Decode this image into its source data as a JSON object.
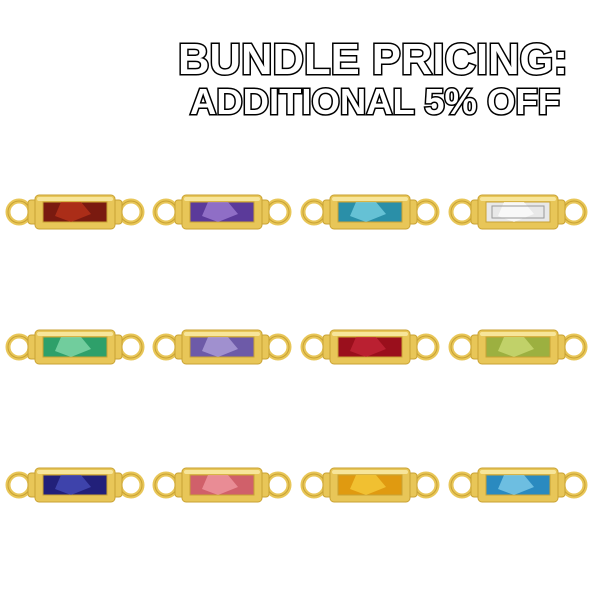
{
  "promo": {
    "line1": "BUNDLE PRICING:",
    "line2": "ADDITIONAL 5% OFF"
  },
  "colors": {
    "gold": "#e8c658",
    "gold_dark": "#c9a233",
    "gold_light": "#f7e59a"
  },
  "charms": [
    {
      "stone": "garnet",
      "color": "#7a1a10",
      "highlight": "#c0361c"
    },
    {
      "stone": "amethyst",
      "color": "#5b3a9a",
      "highlight": "#a585d8"
    },
    {
      "stone": "aquamarine",
      "color": "#2a8fa8",
      "highlight": "#7fd6e8"
    },
    {
      "stone": "diamond",
      "color": "#e8e8e8",
      "highlight": "#ffffff"
    },
    {
      "stone": "emerald",
      "color": "#2ea06a",
      "highlight": "#8fe0b4"
    },
    {
      "stone": "alexandrite",
      "color": "#6d5aa8",
      "highlight": "#b7a6e0"
    },
    {
      "stone": "ruby",
      "color": "#9a0f1c",
      "highlight": "#c8283a"
    },
    {
      "stone": "peridot",
      "color": "#9cb040",
      "highlight": "#d2e07a"
    },
    {
      "stone": "sapphire",
      "color": "#22207a",
      "highlight": "#4a52c0"
    },
    {
      "stone": "pink-tourmaline",
      "color": "#d0606a",
      "highlight": "#f4a0a8"
    },
    {
      "stone": "citrine",
      "color": "#e09a10",
      "highlight": "#f8d040"
    },
    {
      "stone": "blue-topaz",
      "color": "#2a8ac0",
      "highlight": "#8ad4f0"
    }
  ]
}
